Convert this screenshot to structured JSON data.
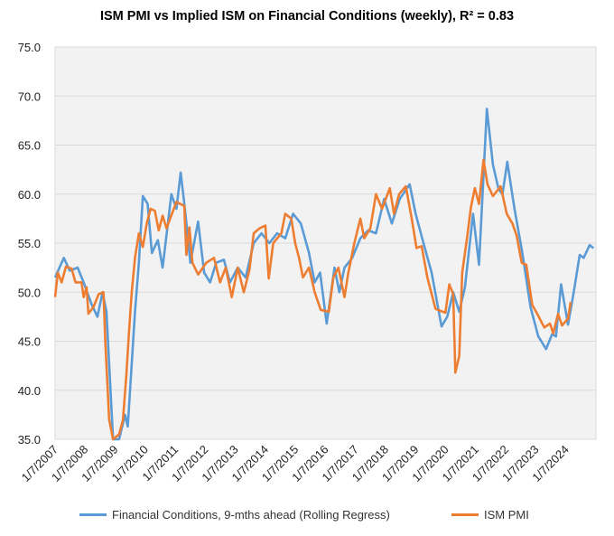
{
  "chart_data": {
    "type": "line",
    "title": "ISM PMI vs Implied ISM on Financial Conditions (weekly), R² = 0.83",
    "xlabel": "",
    "ylabel": "",
    "ylim": [
      35,
      75
    ],
    "xlim": [
      2007.5,
      2025.5
    ],
    "yticks": [
      "35.0",
      "40.0",
      "45.0",
      "50.0",
      "55.0",
      "60.0",
      "65.0",
      "70.0",
      "75.0"
    ],
    "xticks": [
      "1/7/2007",
      "1/7/2008",
      "1/7/2009",
      "1/7/2010",
      "1/7/2011",
      "1/7/2012",
      "1/7/2013",
      "1/7/2014",
      "1/7/2015",
      "1/7/2016",
      "1/7/2017",
      "1/7/2018",
      "1/7/2019",
      "1/7/2020",
      "1/7/2021",
      "1/7/2022",
      "1/7/2023",
      "1/7/2024"
    ],
    "grid": true,
    "legend_position": "bottom",
    "series": [
      {
        "name": "Financial Conditions, 9-mths ahead (Rolling Regress)",
        "color": "#5b9bd5",
        "x": [
          2007.5,
          2007.79,
          2007.99,
          2008.25,
          2008.45,
          2008.71,
          2008.91,
          2009.08,
          2009.21,
          2009.43,
          2009.63,
          2009.83,
          2009.92,
          2010.16,
          2010.29,
          2010.42,
          2010.58,
          2010.72,
          2010.92,
          2011.08,
          2011.37,
          2011.54,
          2011.68,
          2011.84,
          2012.0,
          2012.26,
          2012.46,
          2012.66,
          2012.86,
          2013.12,
          2013.32,
          2013.58,
          2013.84,
          2014.11,
          2014.37,
          2014.63,
          2014.89,
          2015.16,
          2015.42,
          2015.68,
          2015.95,
          2016.14,
          2016.32,
          2016.54,
          2016.8,
          2016.96,
          2017.13,
          2017.39,
          2017.66,
          2017.92,
          2018.18,
          2018.45,
          2018.71,
          2018.97,
          2019.3,
          2019.5,
          2019.76,
          2020.03,
          2020.36,
          2020.55,
          2020.75,
          2020.95,
          2021.14,
          2021.41,
          2021.61,
          2021.87,
          2022.07,
          2022.26,
          2022.39,
          2022.55,
          2022.79,
          2023.05,
          2023.32,
          2023.58,
          2023.84,
          2024.04,
          2024.17,
          2024.34,
          2024.57,
          2024.76,
          2024.96,
          2025.09,
          2025.29,
          2025.42
        ],
        "values": [
          51.5,
          53.5,
          52.2,
          52.5,
          51,
          48.8,
          47.5,
          50,
          48,
          35,
          35,
          37.5,
          36.3,
          48,
          53,
          59.8,
          59,
          54,
          55.3,
          52.5,
          60,
          58.5,
          62.2,
          58,
          53,
          57.2,
          52,
          51,
          53,
          53.3,
          51,
          52.5,
          51.5,
          55,
          56,
          55,
          56,
          55.5,
          58,
          57,
          54,
          51,
          52,
          46.8,
          52.5,
          50,
          52.5,
          53.5,
          55.5,
          56.3,
          56,
          59.5,
          57,
          59.5,
          61,
          58,
          55,
          52,
          46.5,
          47.5,
          50,
          48,
          50.5,
          58,
          52.8,
          68.7,
          63,
          60.5,
          60,
          63.3,
          58.5,
          54,
          48.5,
          45.5,
          44.2,
          45.7,
          45.5,
          50.8,
          46.7,
          50,
          53.8,
          53.5,
          54.8,
          54.5
        ]
      },
      {
        "name": "ISM PMI",
        "color": "#ed7d31",
        "x": [
          2007.5,
          2007.59,
          2007.72,
          2007.86,
          2008.05,
          2008.18,
          2008.38,
          2008.45,
          2008.55,
          2008.61,
          2008.78,
          2008.95,
          2009.11,
          2009.17,
          2009.3,
          2009.43,
          2009.63,
          2009.76,
          2009.87,
          2009.96,
          2010.05,
          2010.16,
          2010.29,
          2010.42,
          2010.55,
          2010.68,
          2010.82,
          2010.95,
          2011.08,
          2011.21,
          2011.34,
          2011.54,
          2011.8,
          2011.87,
          2011.97,
          2012.07,
          2012.26,
          2012.53,
          2012.79,
          2012.99,
          2013.18,
          2013.38,
          2013.58,
          2013.78,
          2013.97,
          2014.11,
          2014.3,
          2014.5,
          2014.61,
          2014.76,
          2015.03,
          2015.16,
          2015.36,
          2015.49,
          2015.62,
          2015.75,
          2015.95,
          2016.14,
          2016.34,
          2016.61,
          2016.76,
          2016.93,
          2017.13,
          2017.26,
          2017.46,
          2017.66,
          2017.79,
          2017.99,
          2018.18,
          2018.38,
          2018.64,
          2018.78,
          2018.95,
          2019.17,
          2019.37,
          2019.53,
          2019.7,
          2019.89,
          2020.16,
          2020.49,
          2020.62,
          2020.75,
          2020.82,
          2020.95,
          2021.05,
          2021.21,
          2021.34,
          2021.47,
          2021.61,
          2021.76,
          2021.89,
          2022.07,
          2022.33,
          2022.53,
          2022.72,
          2022.86,
          2023.03,
          2023.18,
          2023.38,
          2023.58,
          2023.78,
          2023.97,
          2024.08,
          2024.24,
          2024.37,
          2024.57,
          2024.66
        ],
        "values": [
          49.5,
          52,
          51,
          52.6,
          52.4,
          51,
          51,
          49.5,
          50.5,
          47.8,
          48.5,
          49.8,
          50,
          45,
          37,
          35,
          35.5,
          37,
          41.5,
          46,
          50,
          53.5,
          56,
          54.6,
          57,
          58.5,
          58.3,
          56.3,
          57.8,
          56.5,
          57.6,
          59.2,
          58.8,
          53.8,
          56.6,
          53,
          51.8,
          53,
          53.5,
          51,
          52.5,
          49.5,
          52.5,
          50,
          52.3,
          56,
          56.5,
          56.8,
          51.4,
          55,
          56,
          58,
          57.5,
          55,
          53.5,
          51.5,
          52.5,
          50,
          48.2,
          48,
          51.5,
          52.5,
          49.5,
          52,
          55,
          57.5,
          55.5,
          56.5,
          60,
          58.5,
          60.6,
          58,
          60,
          60.8,
          57.5,
          54.5,
          54.7,
          51.5,
          48.3,
          47.9,
          50.8,
          49.8,
          41.8,
          43.5,
          52,
          55.5,
          58.7,
          60.6,
          59,
          63.5,
          61,
          59.8,
          60.8,
          58,
          57,
          55.8,
          53,
          52.8,
          48.7,
          47.6,
          46.4,
          46.8,
          45.8,
          47.8,
          46.6,
          47.3,
          49
        ]
      }
    ]
  }
}
